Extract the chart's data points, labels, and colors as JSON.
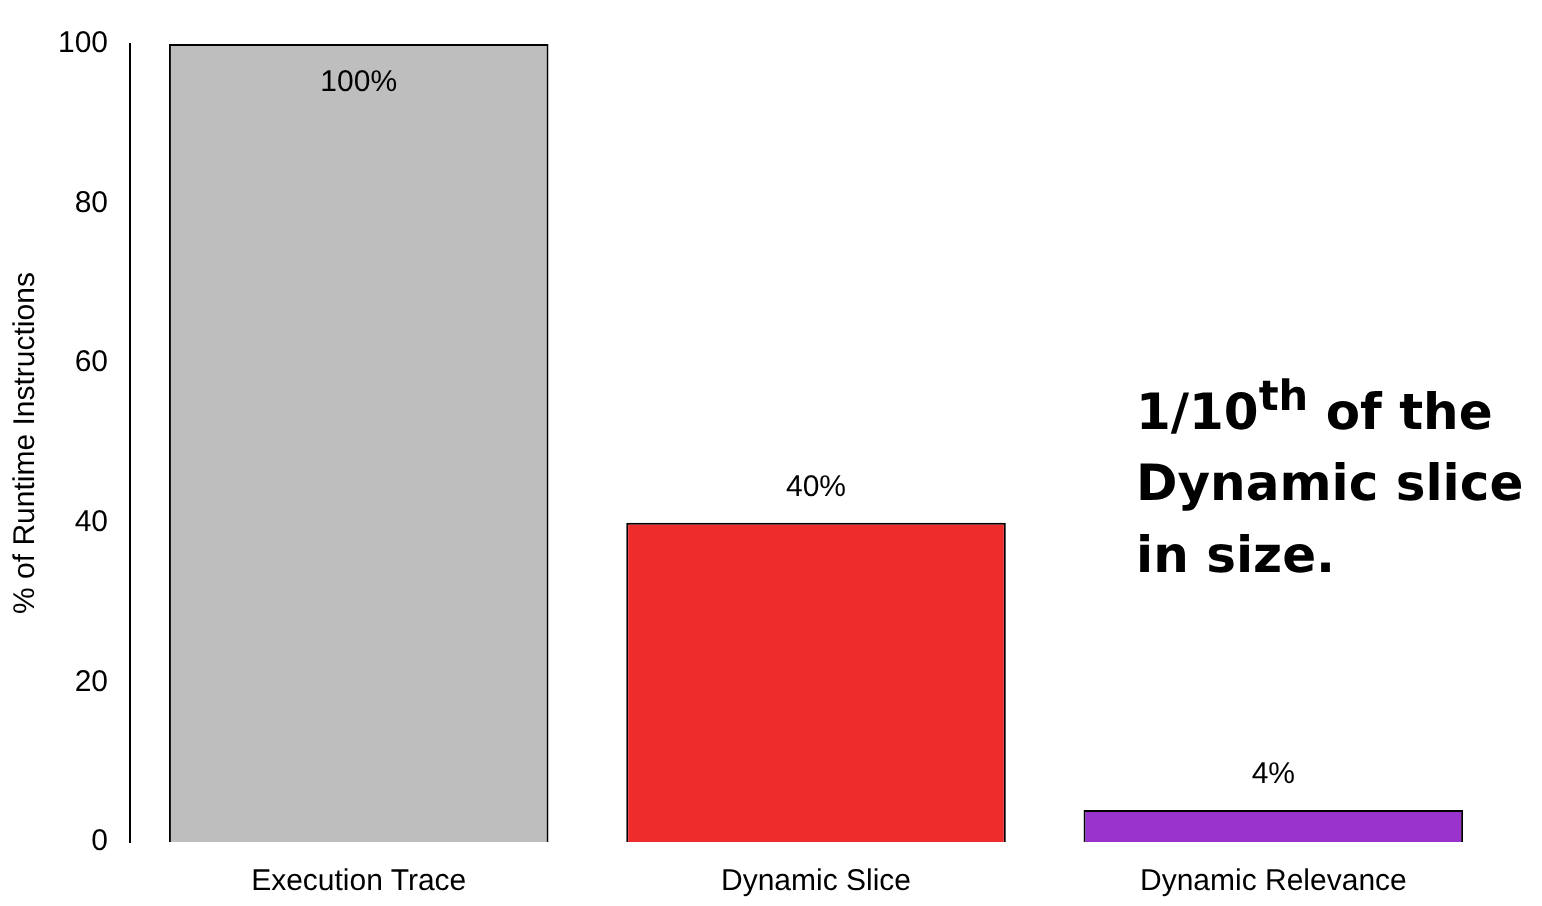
{
  "chart_data": {
    "type": "bar",
    "ylabel": "% of Runtime Instructions",
    "categories": [
      "Execution Trace",
      "Dynamic Slice",
      "Dynamic Relevance"
    ],
    "values": [
      100,
      40,
      4
    ],
    "colors": [
      "#bebebe",
      "#ee2c2c",
      "#9a32cd"
    ],
    "value_labels": [
      "100%",
      "40%",
      "4%"
    ],
    "ylim": [
      0,
      100
    ],
    "yticks": [
      0,
      20,
      40,
      60,
      80,
      100
    ],
    "grid": false,
    "legend": false,
    "annotations": [
      "1/10$^{th}$ of the Dynamic slice in size."
    ]
  }
}
